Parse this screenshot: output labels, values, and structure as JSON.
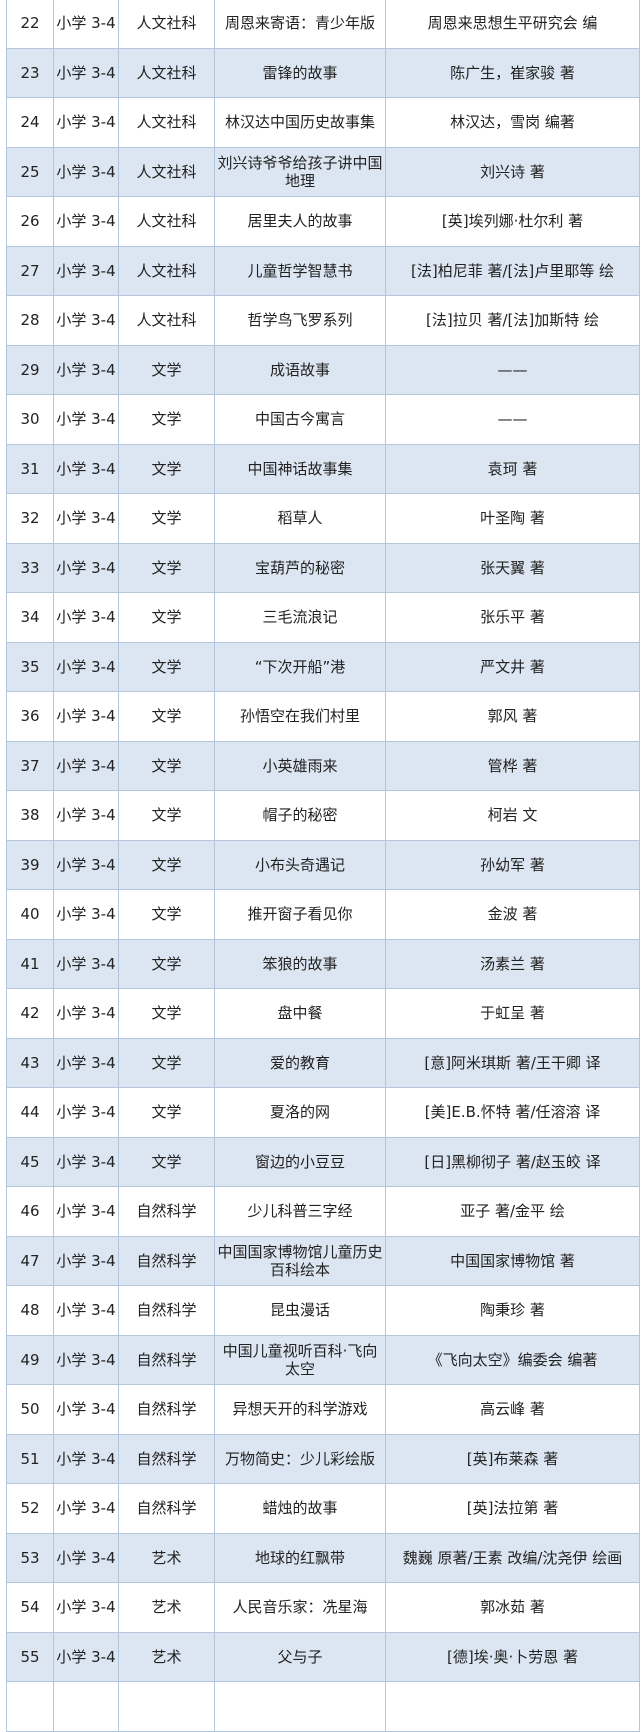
{
  "colors": {
    "alt_row": "#dce6f2",
    "border": "#b4c6dc"
  },
  "rows": [
    {
      "no": "22",
      "grade": "小学 3-4",
      "category": "人文社科",
      "title": "周恩来寄语：青少年版",
      "author": "周恩来思想生平研究会 编"
    },
    {
      "no": "23",
      "grade": "小学 3-4",
      "category": "人文社科",
      "title": "雷锋的故事",
      "author": "陈广生，崔家骏 著"
    },
    {
      "no": "24",
      "grade": "小学 3-4",
      "category": "人文社科",
      "title": "林汉达中国历史故事集",
      "author": "林汉达，雪岗 编著"
    },
    {
      "no": "25",
      "grade": "小学 3-4",
      "category": "人文社科",
      "title": "刘兴诗爷爷给孩子讲中国地理",
      "author": "刘兴诗 著"
    },
    {
      "no": "26",
      "grade": "小学 3-4",
      "category": "人文社科",
      "title": "居里夫人的故事",
      "author": "[英]埃列娜·杜尔利 著"
    },
    {
      "no": "27",
      "grade": "小学 3-4",
      "category": "人文社科",
      "title": "儿童哲学智慧书",
      "author": "[法]柏尼菲 著/[法]卢里耶等 绘"
    },
    {
      "no": "28",
      "grade": "小学 3-4",
      "category": "人文社科",
      "title": "哲学鸟飞罗系列",
      "author": "[法]拉贝 著/[法]加斯特 绘"
    },
    {
      "no": "29",
      "grade": "小学 3-4",
      "category": "文学",
      "title": "成语故事",
      "author": "——"
    },
    {
      "no": "30",
      "grade": "小学 3-4",
      "category": "文学",
      "title": "中国古今寓言",
      "author": "——"
    },
    {
      "no": "31",
      "grade": "小学 3-4",
      "category": "文学",
      "title": "中国神话故事集",
      "author": "袁珂 著"
    },
    {
      "no": "32",
      "grade": "小学 3-4",
      "category": "文学",
      "title": "稻草人",
      "author": "叶圣陶 著"
    },
    {
      "no": "33",
      "grade": "小学 3-4",
      "category": "文学",
      "title": "宝葫芦的秘密",
      "author": "张天翼 著"
    },
    {
      "no": "34",
      "grade": "小学 3-4",
      "category": "文学",
      "title": "三毛流浪记",
      "author": "张乐平 著"
    },
    {
      "no": "35",
      "grade": "小学 3-4",
      "category": "文学",
      "title": "“下次开船”港",
      "author": "严文井 著"
    },
    {
      "no": "36",
      "grade": "小学 3-4",
      "category": "文学",
      "title": "孙悟空在我们村里",
      "author": "郭风 著"
    },
    {
      "no": "37",
      "grade": "小学 3-4",
      "category": "文学",
      "title": "小英雄雨来",
      "author": "管桦 著"
    },
    {
      "no": "38",
      "grade": "小学 3-4",
      "category": "文学",
      "title": "帽子的秘密",
      "author": "柯岩 文"
    },
    {
      "no": "39",
      "grade": "小学 3-4",
      "category": "文学",
      "title": "小布头奇遇记",
      "author": "孙幼军 著"
    },
    {
      "no": "40",
      "grade": "小学 3-4",
      "category": "文学",
      "title": "推开窗子看见你",
      "author": "金波 著"
    },
    {
      "no": "41",
      "grade": "小学 3-4",
      "category": "文学",
      "title": "笨狼的故事",
      "author": "汤素兰 著"
    },
    {
      "no": "42",
      "grade": "小学 3-4",
      "category": "文学",
      "title": "盘中餐",
      "author": "于虹呈 著"
    },
    {
      "no": "43",
      "grade": "小学 3-4",
      "category": "文学",
      "title": "爱的教育",
      "author": "[意]阿米琪斯 著/王干卿 译"
    },
    {
      "no": "44",
      "grade": "小学 3-4",
      "category": "文学",
      "title": "夏洛的网",
      "author": "[美]E.B.怀特 著/任溶溶 译"
    },
    {
      "no": "45",
      "grade": "小学 3-4",
      "category": "文学",
      "title": "窗边的小豆豆",
      "author": "[日]黑柳彻子 著/赵玉皎 译"
    },
    {
      "no": "46",
      "grade": "小学 3-4",
      "category": "自然科学",
      "title": "少儿科普三字经",
      "author": "亚子 著/金平 绘"
    },
    {
      "no": "47",
      "grade": "小学 3-4",
      "category": "自然科学",
      "title": "中国国家博物馆儿童历史百科绘本",
      "author": "中国国家博物馆 著"
    },
    {
      "no": "48",
      "grade": "小学 3-4",
      "category": "自然科学",
      "title": "昆虫漫话",
      "author": "陶秉珍 著"
    },
    {
      "no": "49",
      "grade": "小学 3-4",
      "category": "自然科学",
      "title": "中国儿童视听百科·飞向太空",
      "author": "《飞向太空》编委会 编著"
    },
    {
      "no": "50",
      "grade": "小学 3-4",
      "category": "自然科学",
      "title": "异想天开的科学游戏",
      "author": "高云峰 著"
    },
    {
      "no": "51",
      "grade": "小学 3-4",
      "category": "自然科学",
      "title": "万物简史：少儿彩绘版",
      "author": "[英]布莱森 著"
    },
    {
      "no": "52",
      "grade": "小学 3-4",
      "category": "自然科学",
      "title": "蜡烛的故事",
      "author": "[英]法拉第 著"
    },
    {
      "no": "53",
      "grade": "小学 3-4",
      "category": "艺术",
      "title": "地球的红飘带",
      "author": "魏巍 原著/王素 改编/沈尧伊 绘画"
    },
    {
      "no": "54",
      "grade": "小学 3-4",
      "category": "艺术",
      "title": "人民音乐家：冼星海",
      "author": "郭冰茹 著"
    },
    {
      "no": "55",
      "grade": "小学 3-4",
      "category": "艺术",
      "title": "父与子",
      "author": "[德]埃·奥·卜劳恩 著"
    }
  ]
}
